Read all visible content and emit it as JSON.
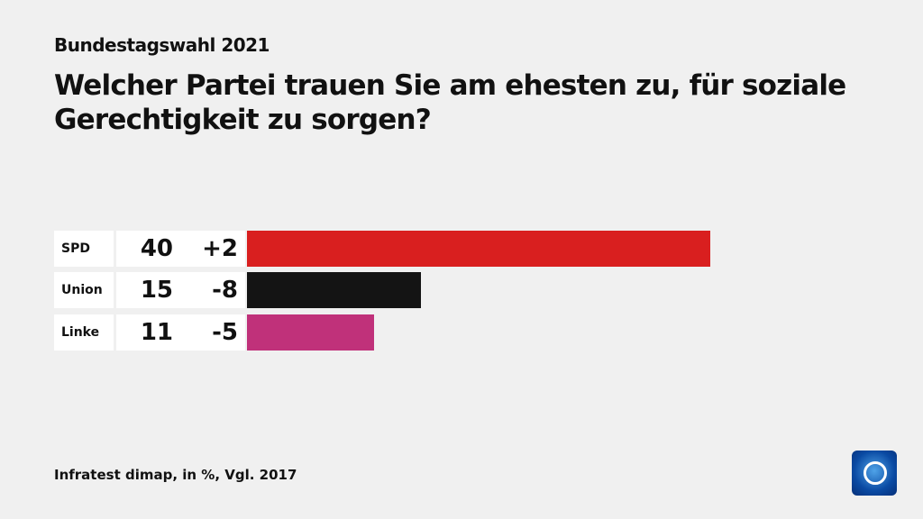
{
  "supertitle": "Bundestagswahl 2021",
  "title": "Welcher Partei trauen Sie am ehesten zu, für soziale Gerechtigkeit zu sorgen?",
  "source": "Infratest dimap, in %, Vgl. 2017",
  "chart_data": {
    "type": "bar",
    "orientation": "horizontal",
    "categories": [
      "SPD",
      "Union",
      "Linke"
    ],
    "values": [
      40,
      15,
      11
    ],
    "changes": [
      "+2",
      "-8",
      "-5"
    ],
    "colors": [
      "#d91f1f",
      "#141414",
      "#c0317a"
    ],
    "xlim": [
      0,
      40
    ]
  }
}
